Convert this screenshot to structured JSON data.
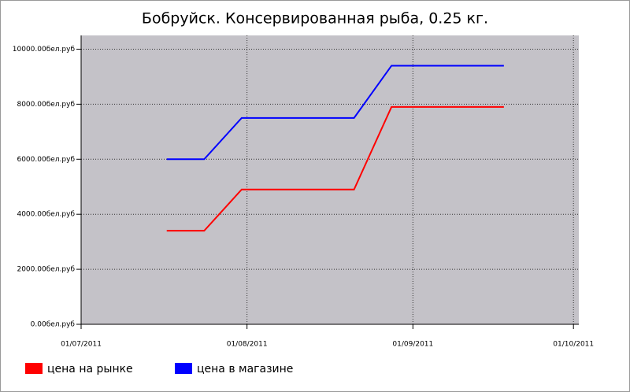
{
  "chart_data": {
    "type": "line",
    "title": "Бобруйск. Консервированная рыба, 0.25 кг.",
    "x": [
      "2011-07-17",
      "2011-07-24",
      "2011-07-31",
      "2011-08-07",
      "2011-08-14",
      "2011-08-21",
      "2011-08-28",
      "2011-09-04",
      "2011-09-11",
      "2011-09-18"
    ],
    "series": [
      {
        "name": "цена на рынке",
        "color": "#ff0000",
        "values": [
          3400,
          3400,
          4900,
          4900,
          4900,
          4900,
          7900,
          7900,
          7900,
          7900
        ]
      },
      {
        "name": "цена в магазине",
        "color": "#0000ff",
        "values": [
          6000,
          6000,
          7500,
          7500,
          7500,
          7500,
          9400,
          9400,
          9400,
          9400
        ]
      }
    ],
    "xlim": [
      "2011-07-01",
      "2011-10-02"
    ],
    "xticks": [
      {
        "value": "2011-07-01",
        "label": "01/07/2011"
      },
      {
        "value": "2011-08-01",
        "label": "01/08/2011"
      },
      {
        "value": "2011-09-01",
        "label": "01/09/2011"
      },
      {
        "value": "2011-10-01",
        "label": "01/10/2011"
      }
    ],
    "ylim": [
      0,
      10500
    ],
    "yticks": [
      {
        "value": 0,
        "label": "0.00бел.руб"
      },
      {
        "value": 2000,
        "label": "2000.00бел.руб"
      },
      {
        "value": 4000,
        "label": "4000.00бел.руб"
      },
      {
        "value": 6000,
        "label": "6000.00бел.руб"
      },
      {
        "value": 8000,
        "label": "8000.00бел.руб"
      },
      {
        "value": 10000,
        "label": "10000.00бел.руб"
      }
    ],
    "grid": true
  }
}
